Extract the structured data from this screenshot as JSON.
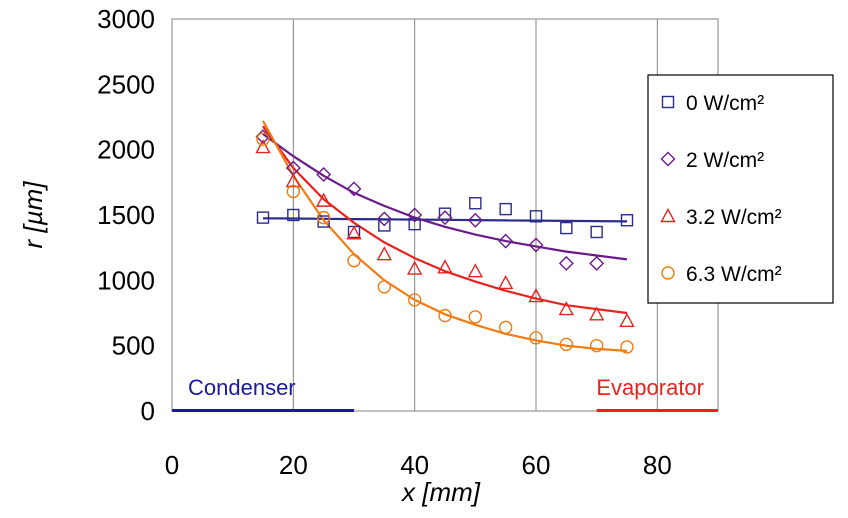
{
  "chart_data": {
    "type": "scatter",
    "xlabel": "x [mm]",
    "ylabel": "r [µm]",
    "xlim": [
      0,
      90
    ],
    "ylim": [
      0,
      3000
    ],
    "x_ticks": [
      0,
      20,
      40,
      60,
      80
    ],
    "y_ticks": [
      0,
      500,
      1000,
      1500,
      2000,
      2500,
      3000
    ],
    "grid": {
      "x": true,
      "y": false
    },
    "legend_position": "right",
    "series": [
      {
        "name": "0 W/cm²",
        "marker": "square",
        "color": "#2B2B8C",
        "points": [
          [
            15,
            1480
          ],
          [
            20,
            1500
          ],
          [
            25,
            1450
          ],
          [
            30,
            1370
          ],
          [
            35,
            1420
          ],
          [
            40,
            1430
          ],
          [
            45,
            1510
          ],
          [
            50,
            1590
          ],
          [
            55,
            1545
          ],
          [
            60,
            1490
          ],
          [
            65,
            1400
          ],
          [
            70,
            1370
          ],
          [
            75,
            1460
          ]
        ],
        "fit": [
          [
            15,
            1475
          ],
          [
            20,
            1473
          ],
          [
            25,
            1471
          ],
          [
            30,
            1469
          ],
          [
            35,
            1467
          ],
          [
            40,
            1465
          ],
          [
            45,
            1463
          ],
          [
            50,
            1461
          ],
          [
            55,
            1459
          ],
          [
            60,
            1457
          ],
          [
            65,
            1455
          ],
          [
            70,
            1453
          ],
          [
            75,
            1451
          ]
        ]
      },
      {
        "name": "2 W/cm²",
        "marker": "diamond",
        "color": "#6A1B8A",
        "points": [
          [
            15,
            2100
          ],
          [
            20,
            1860
          ],
          [
            25,
            1810
          ],
          [
            30,
            1700
          ],
          [
            35,
            1470
          ],
          [
            40,
            1500
          ],
          [
            45,
            1480
          ],
          [
            50,
            1460
          ],
          [
            55,
            1300
          ],
          [
            60,
            1270
          ],
          [
            65,
            1130
          ],
          [
            70,
            1130
          ]
        ],
        "fit": [
          [
            15,
            2120
          ],
          [
            20,
            1950
          ],
          [
            25,
            1800
          ],
          [
            30,
            1670
          ],
          [
            35,
            1570
          ],
          [
            40,
            1480
          ],
          [
            45,
            1410
          ],
          [
            50,
            1350
          ],
          [
            55,
            1300
          ],
          [
            60,
            1260
          ],
          [
            65,
            1220
          ],
          [
            70,
            1190
          ],
          [
            75,
            1160
          ]
        ]
      },
      {
        "name": "3.2 W/cm²",
        "marker": "triangle",
        "color": "#E8231F",
        "points": [
          [
            15,
            2020
          ],
          [
            20,
            1760
          ],
          [
            25,
            1610
          ],
          [
            30,
            1360
          ],
          [
            35,
            1200
          ],
          [
            40,
            1090
          ],
          [
            45,
            1100
          ],
          [
            50,
            1070
          ],
          [
            55,
            980
          ],
          [
            60,
            880
          ],
          [
            65,
            780
          ],
          [
            70,
            740
          ],
          [
            75,
            690
          ]
        ],
        "fit": [
          [
            15,
            2180
          ],
          [
            20,
            1860
          ],
          [
            25,
            1620
          ],
          [
            30,
            1440
          ],
          [
            35,
            1290
          ],
          [
            40,
            1170
          ],
          [
            45,
            1070
          ],
          [
            50,
            990
          ],
          [
            55,
            920
          ],
          [
            60,
            860
          ],
          [
            65,
            810
          ],
          [
            70,
            780
          ],
          [
            75,
            750
          ]
        ]
      },
      {
        "name": "6.3 W/cm²",
        "marker": "circle",
        "color": "#F07C12",
        "points": [
          [
            15,
            2080
          ],
          [
            20,
            1680
          ],
          [
            25,
            1480
          ],
          [
            30,
            1150
          ],
          [
            35,
            950
          ],
          [
            40,
            850
          ],
          [
            45,
            730
          ],
          [
            50,
            720
          ],
          [
            55,
            640
          ],
          [
            60,
            560
          ],
          [
            65,
            510
          ],
          [
            70,
            500
          ],
          [
            75,
            490
          ]
        ],
        "fit": [
          [
            15,
            2220
          ],
          [
            20,
            1800
          ],
          [
            25,
            1460
          ],
          [
            30,
            1200
          ],
          [
            35,
            1000
          ],
          [
            40,
            850
          ],
          [
            45,
            740
          ],
          [
            50,
            660
          ],
          [
            55,
            590
          ],
          [
            60,
            540
          ],
          [
            65,
            500
          ],
          [
            70,
            475
          ],
          [
            75,
            460
          ]
        ]
      }
    ],
    "regions": [
      {
        "label": "Condenser",
        "color": "#1A1AA0",
        "range": [
          0,
          30
        ]
      },
      {
        "label": "Evaporator",
        "color": "#E8231F",
        "range": [
          70,
          90
        ]
      }
    ]
  }
}
